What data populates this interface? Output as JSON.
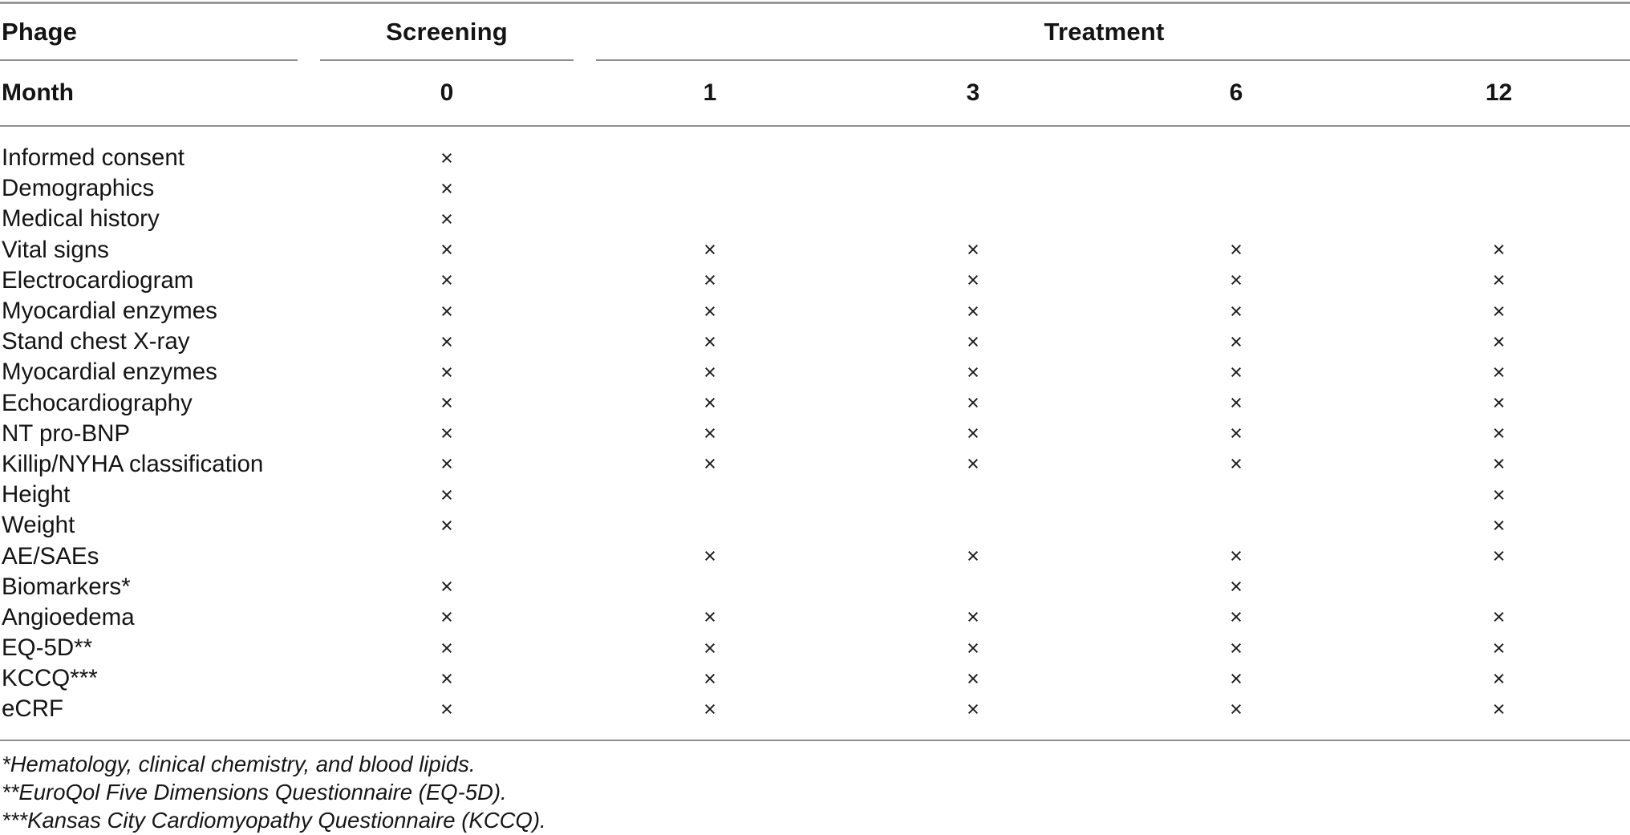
{
  "table": {
    "phase_header": {
      "row_label": "Phage",
      "screening_label": "Screening",
      "treatment_label": "Treatment"
    },
    "month_header": {
      "row_label": "Month",
      "months": [
        "0",
        "1",
        "3",
        "6",
        "12"
      ]
    },
    "mark_glyph": "×",
    "rows": [
      {
        "label": "Informed consent",
        "marks": [
          1,
          0,
          0,
          0,
          0
        ]
      },
      {
        "label": "Demographics",
        "marks": [
          1,
          0,
          0,
          0,
          0
        ]
      },
      {
        "label": "Medical history",
        "marks": [
          1,
          0,
          0,
          0,
          0
        ]
      },
      {
        "label": "Vital signs",
        "marks": [
          1,
          1,
          1,
          1,
          1
        ]
      },
      {
        "label": "Electrocardiogram",
        "marks": [
          1,
          1,
          1,
          1,
          1
        ]
      },
      {
        "label": "Myocardial enzymes",
        "marks": [
          1,
          1,
          1,
          1,
          1
        ]
      },
      {
        "label": "Stand chest X-ray",
        "marks": [
          1,
          1,
          1,
          1,
          1
        ]
      },
      {
        "label": "Myocardial enzymes",
        "marks": [
          1,
          1,
          1,
          1,
          1
        ]
      },
      {
        "label": "Echocardiography",
        "marks": [
          1,
          1,
          1,
          1,
          1
        ]
      },
      {
        "label": "NT pro-BNP",
        "marks": [
          1,
          1,
          1,
          1,
          1
        ]
      },
      {
        "label": "Killip/NYHA classification",
        "marks": [
          1,
          1,
          1,
          1,
          1
        ]
      },
      {
        "label": "Height",
        "marks": [
          1,
          0,
          0,
          0,
          1
        ]
      },
      {
        "label": "Weight",
        "marks": [
          1,
          0,
          0,
          0,
          1
        ]
      },
      {
        "label": "AE/SAEs",
        "marks": [
          0,
          1,
          1,
          1,
          1
        ]
      },
      {
        "label": "Biomarkers*",
        "marks": [
          1,
          0,
          0,
          1,
          0
        ]
      },
      {
        "label": "Angioedema",
        "marks": [
          1,
          1,
          1,
          1,
          1
        ]
      },
      {
        "label": "EQ-5D**",
        "marks": [
          1,
          1,
          1,
          1,
          1
        ]
      },
      {
        "label": "KCCQ***",
        "marks": [
          1,
          1,
          1,
          1,
          1
        ]
      },
      {
        "label": "eCRF",
        "marks": [
          1,
          1,
          1,
          1,
          1
        ]
      }
    ],
    "footnotes": [
      "*Hematology, clinical chemistry, and blood lipids.",
      "**EuroQol Five Dimensions Questionnaire (EQ-5D).",
      "***Kansas City Cardiomyopathy Questionnaire (KCCQ)."
    ],
    "colors": {
      "text": "#141414",
      "rule": "#8e8e8e"
    }
  }
}
